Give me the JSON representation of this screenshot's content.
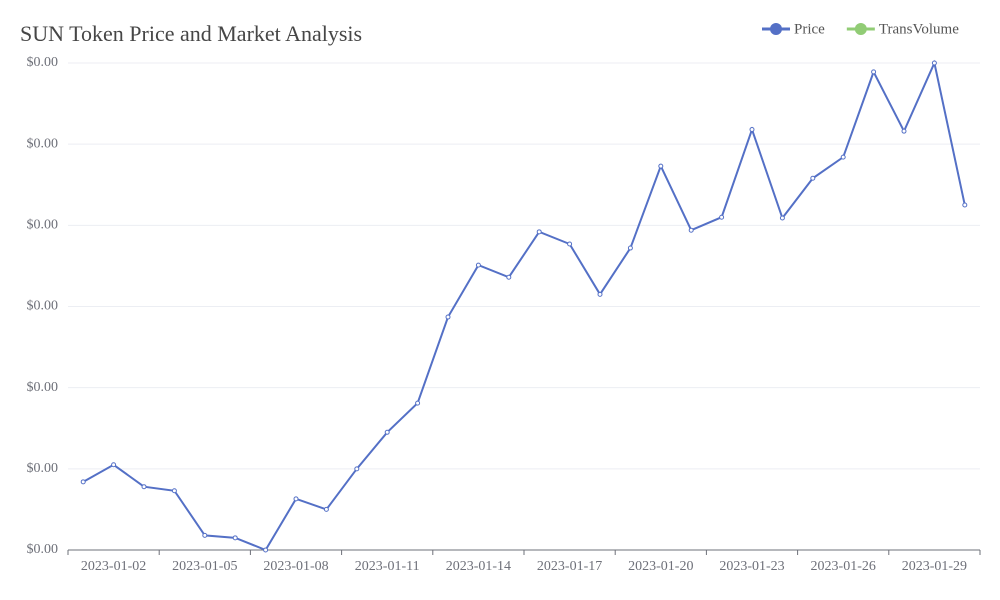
{
  "chart_data": {
    "type": "line",
    "title": "SUN Token Price and Market Analysis",
    "categories": [
      null,
      "2023-01-02",
      null,
      null,
      "2023-01-05",
      null,
      null,
      "2023-01-08",
      null,
      null,
      "2023-01-11",
      null,
      null,
      "2023-01-14",
      null,
      null,
      "2023-01-17",
      null,
      null,
      "2023-01-20",
      null,
      null,
      "2023-01-23",
      null,
      null,
      "2023-01-26",
      null,
      null,
      "2023-01-29",
      null
    ],
    "series": [
      {
        "name": "Price",
        "color": "#5470c6",
        "values": [
          0.005084,
          0.005105,
          0.005078,
          0.005073,
          0.005018,
          0.005015,
          0.005,
          0.005063,
          0.00505,
          0.0051,
          0.005145,
          0.005181,
          0.005287,
          0.005351,
          0.005336,
          0.005392,
          0.005377,
          0.005315,
          0.005372,
          0.005473,
          0.005394,
          0.00541,
          0.005518,
          0.005409,
          0.005458,
          0.005484,
          0.005589,
          0.005516,
          0.0056,
          0.005425
        ]
      },
      {
        "name": "TransVolume",
        "color": "#91cc75",
        "values": [
          null,
          null,
          null,
          null,
          null,
          null,
          null,
          null,
          null,
          null,
          null,
          null,
          null,
          null,
          null,
          null,
          null,
          null,
          null,
          null,
          null,
          null,
          null,
          null,
          null,
          null,
          null,
          null,
          null,
          null
        ]
      }
    ],
    "ylim": [
      0.005,
      0.0056
    ],
    "yticks": [
      {
        "value": 0.005,
        "label": "$0.00"
      },
      {
        "value": 0.0051,
        "label": "$0.00"
      },
      {
        "value": 0.0052,
        "label": "$0.00"
      },
      {
        "value": 0.0053,
        "label": "$0.00"
      },
      {
        "value": 0.0054,
        "label": "$0.00"
      },
      {
        "value": 0.0055,
        "label": "$0.00"
      },
      {
        "value": 0.0056,
        "label": "$0.00"
      }
    ],
    "grid": true
  }
}
